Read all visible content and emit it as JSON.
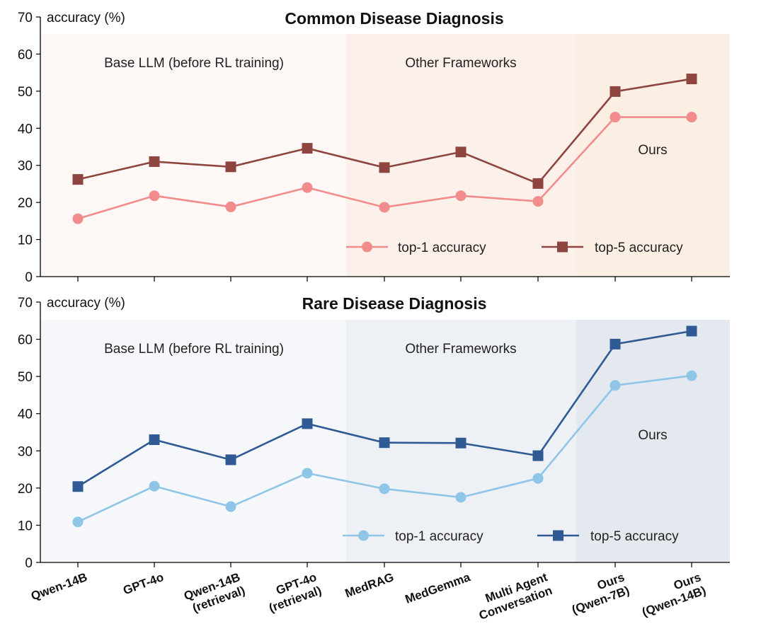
{
  "colors": {
    "common_top1": "#f28b8b",
    "common_top5": "#8e4540",
    "rare_top1": "#8fc6e8",
    "rare_top5": "#2f5a94",
    "common_bg_base": "#fdf8f6",
    "common_bg_other": "#fcf1ea",
    "common_bg_ours": "#fbeee3",
    "rare_bg_base": "#f5f7fb",
    "rare_bg_other": "#edf0f5",
    "rare_bg_ours": "#e4e8ef"
  },
  "x_labels": [
    [
      "Qwen-14B"
    ],
    [
      "GPT-4o"
    ],
    [
      "Qwen-14B",
      "(retrieval)"
    ],
    [
      "GPT-4o",
      "(retrieval)"
    ],
    [
      "MedRAG"
    ],
    [
      "MedGemma"
    ],
    [
      "Multi Agent",
      "Conversation"
    ],
    [
      "Ours",
      "(Qwen-7B)"
    ],
    [
      "Ours",
      "(Qwen-14B)"
    ]
  ],
  "chart_data": [
    {
      "type": "line",
      "title": "Common Disease Diagnosis",
      "ylabel": "accuracy (%)",
      "ylim": [
        0,
        70
      ],
      "yticks": [
        0,
        10,
        20,
        30,
        40,
        50,
        60,
        70
      ],
      "regions": [
        "Base LLM (before RL training)",
        "Other Frameworks",
        "Ours"
      ],
      "series": [
        {
          "name": "top-1 accuracy",
          "marker": "circle",
          "values": [
            15.6,
            21.8,
            18.8,
            24.0,
            18.7,
            21.8,
            20.3,
            43.0,
            43.0
          ]
        },
        {
          "name": "top-5 accuracy",
          "marker": "square",
          "values": [
            26.2,
            31.0,
            29.6,
            34.6,
            29.4,
            33.6,
            25.1,
            49.9,
            53.3
          ]
        }
      ]
    },
    {
      "type": "line",
      "title": "Rare Disease Diagnosis",
      "ylabel": "accuracy (%)",
      "ylim": [
        0,
        70
      ],
      "yticks": [
        0,
        10,
        20,
        30,
        40,
        50,
        60,
        70
      ],
      "regions": [
        "Base LLM (before RL training)",
        "Other Frameworks",
        "Ours"
      ],
      "series": [
        {
          "name": "top-1 accuracy",
          "marker": "circle",
          "values": [
            10.9,
            20.5,
            15.0,
            24.0,
            19.8,
            17.5,
            22.6,
            47.6,
            50.2
          ]
        },
        {
          "name": "top-5 accuracy",
          "marker": "square",
          "values": [
            20.4,
            33.0,
            27.6,
            37.3,
            32.2,
            32.1,
            28.7,
            58.7,
            62.2
          ]
        }
      ]
    }
  ]
}
